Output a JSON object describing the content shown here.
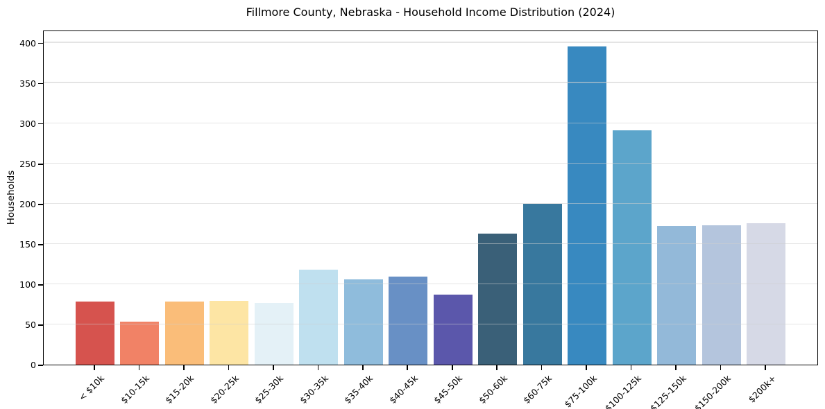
{
  "chart_data": {
    "type": "bar",
    "title": "Fillmore County, Nebraska - Household Income Distribution (2024)",
    "xlabel": "",
    "ylabel": "Households",
    "categories": [
      "< $10k",
      "$10-15k",
      "$15-20k",
      "$20-25k",
      "$25-30k",
      "$30-35k",
      "$35-40k",
      "$40-45k",
      "$45-50k",
      "$50-60k",
      "$60-75k",
      "$75-100k",
      "$100-125k",
      "$125-150k",
      "$150-200k",
      "$200k+"
    ],
    "values": [
      78,
      53,
      78,
      79,
      77,
      118,
      106,
      109,
      87,
      163,
      200,
      395,
      291,
      172,
      173,
      176
    ],
    "bar_colors": [
      "#d6534e",
      "#f18266",
      "#fabd79",
      "#fde5a4",
      "#e4f1f7",
      "#bfe0ef",
      "#8fbcdc",
      "#6890c5",
      "#5b57ab",
      "#3a6078",
      "#38789e",
      "#3889c0",
      "#5ca5cb",
      "#93b9d9",
      "#b4c5dd",
      "#d6d9e6"
    ],
    "yticks": [
      0,
      50,
      100,
      150,
      200,
      250,
      300,
      350,
      400
    ],
    "ylim": [
      0,
      416
    ],
    "grid": "horizontal",
    "legend": "none",
    "background_color": "#ffffff",
    "gridline_color": "#cdcdcd",
    "spine_color": "#000000"
  }
}
